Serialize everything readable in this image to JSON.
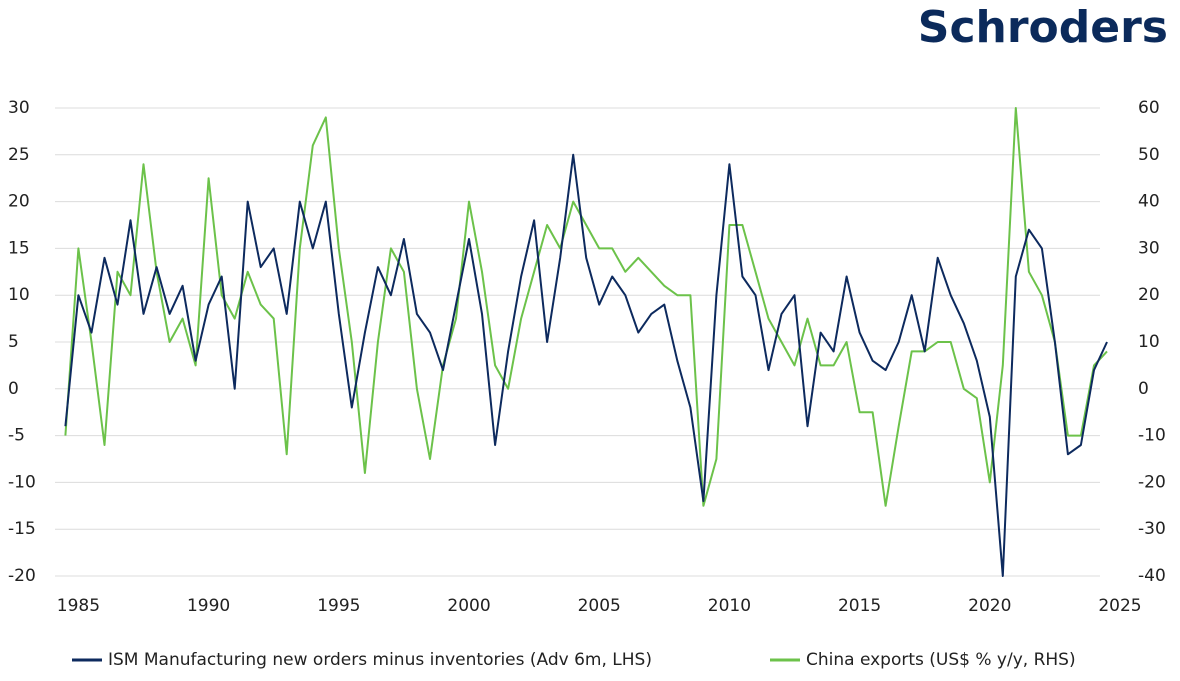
{
  "brand": "Schroders",
  "chart_data": {
    "type": "line",
    "x": [
      1984.5,
      1985,
      1985.5,
      1986,
      1986.5,
      1987,
      1987.5,
      1988,
      1988.5,
      1989,
      1989.5,
      1990,
      1990.5,
      1991,
      1991.5,
      1992,
      1992.5,
      1993,
      1993.5,
      1994,
      1994.5,
      1995,
      1995.5,
      1996,
      1996.5,
      1997,
      1997.5,
      1998,
      1998.5,
      1999,
      1999.5,
      2000,
      2000.5,
      2001,
      2001.5,
      2002,
      2002.5,
      2003,
      2003.5,
      2004,
      2004.5,
      2005,
      2005.5,
      2006,
      2006.5,
      2007,
      2007.5,
      2008,
      2008.5,
      2009,
      2009.5,
      2010,
      2010.5,
      2011,
      2011.5,
      2012,
      2012.5,
      2013,
      2013.5,
      2014,
      2014.5,
      2015,
      2015.5,
      2016,
      2016.5,
      2017,
      2017.5,
      2018,
      2018.5,
      2019,
      2019.5,
      2020,
      2020.5,
      2021,
      2021.5,
      2022,
      2022.5,
      2023,
      2023.5,
      2024,
      2024.5
    ],
    "series": [
      {
        "name": "ISM Manufacturing new orders minus inventories (Adv 6m, LHS)",
        "color": "#0d2a5e",
        "axis": "y",
        "values": [
          -4,
          10,
          6,
          14,
          9,
          18,
          8,
          13,
          8,
          11,
          3,
          9,
          12,
          0,
          20,
          13,
          15,
          8,
          20,
          15,
          20,
          8,
          -2,
          6,
          13,
          10,
          16,
          8,
          6,
          2,
          9,
          16,
          8,
          -6,
          4,
          12,
          18,
          5,
          14,
          25,
          14,
          9,
          12,
          10,
          6,
          8,
          9,
          3,
          -2,
          -12,
          10,
          24,
          12,
          10,
          2,
          8,
          10,
          -4,
          6,
          4,
          12,
          6,
          3,
          2,
          5,
          10,
          4,
          14,
          10,
          7,
          3,
          -3,
          -20,
          12,
          17,
          15,
          5,
          -7,
          -6,
          2,
          5
        ]
      },
      {
        "name": "China exports (US$ % y/y, RHS)",
        "color": "#6cc24a",
        "axis": "y2",
        "values": [
          -10,
          30,
          10,
          -12,
          25,
          20,
          48,
          25,
          10,
          15,
          5,
          45,
          20,
          15,
          25,
          18,
          15,
          -14,
          30,
          52,
          58,
          30,
          10,
          -18,
          10,
          30,
          25,
          0,
          -15,
          5,
          15,
          40,
          25,
          5,
          0,
          15,
          25,
          35,
          30,
          40,
          35,
          30,
          30,
          25,
          28,
          25,
          22,
          20,
          20,
          -25,
          -15,
          35,
          35,
          25,
          15,
          10,
          5,
          15,
          5,
          5,
          10,
          -5,
          -5,
          -25,
          -8,
          8,
          8,
          10,
          10,
          0,
          -2,
          -20,
          5,
          60,
          25,
          20,
          10,
          -10,
          -10,
          5,
          8
        ]
      }
    ],
    "xlim": [
      1984.1,
      2025
    ],
    "xticks": [
      1985,
      1990,
      1995,
      2000,
      2005,
      2010,
      2015,
      2020,
      2025
    ],
    "ylim": [
      -20,
      30
    ],
    "yticks": [
      -20,
      -15,
      -10,
      -5,
      0,
      5,
      10,
      15,
      20,
      25,
      30
    ],
    "y2lim": [
      -40,
      60
    ],
    "y2ticks": [
      -40,
      -30,
      -20,
      -10,
      0,
      10,
      20,
      30,
      40,
      50,
      60
    ],
    "grid": true,
    "legend": "bottom"
  }
}
